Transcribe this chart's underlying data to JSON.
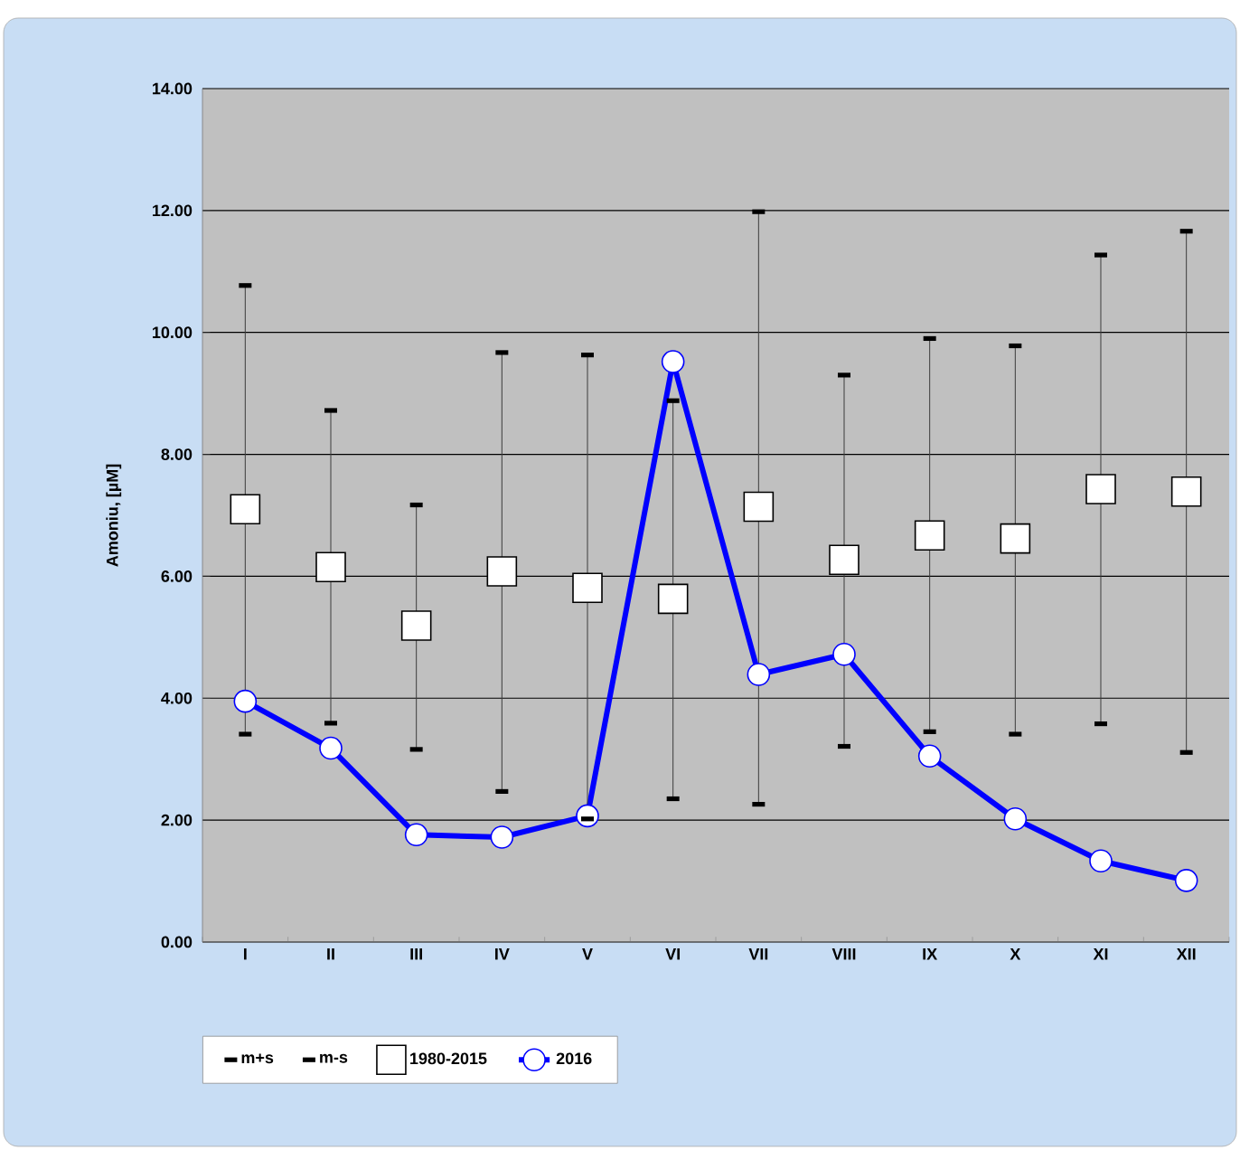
{
  "chart_data": {
    "type": "line",
    "ylabel": "Amoniu, [µM]",
    "categories": [
      "I",
      "II",
      "III",
      "IV",
      "V",
      "VI",
      "VII",
      "VIII",
      "IX",
      "X",
      "XI",
      "XII"
    ],
    "series": [
      {
        "name": "m+s",
        "type": "scatter",
        "color": "#000000",
        "values": [
          10.77,
          8.72,
          7.17,
          9.67,
          9.63,
          8.88,
          11.98,
          9.3,
          9.9,
          9.78,
          11.27,
          11.66
        ]
      },
      {
        "name": "m-s",
        "type": "scatter",
        "color": "#000000",
        "values": [
          3.41,
          3.59,
          3.16,
          2.47,
          2.02,
          2.35,
          2.26,
          3.21,
          3.45,
          3.41,
          3.58,
          3.11
        ]
      },
      {
        "name": "1980-2015",
        "type": "scatter",
        "marker": "square",
        "color": "#ffffff",
        "values": [
          7.1,
          6.15,
          5.19,
          6.08,
          5.81,
          5.63,
          7.14,
          6.27,
          6.67,
          6.62,
          7.43,
          7.39
        ]
      },
      {
        "name": "2016",
        "marker": "circle",
        "color": "#0000ff",
        "values": [
          3.95,
          3.18,
          1.76,
          1.72,
          2.07,
          9.52,
          4.39,
          4.72,
          3.05,
          2.02,
          1.33,
          1.01
        ]
      }
    ],
    "ylim": [
      0,
      14
    ],
    "yticks": [
      {
        "value": 0,
        "label": "0.00"
      },
      {
        "value": 2,
        "label": "2.00"
      },
      {
        "value": 4,
        "label": "4.00"
      },
      {
        "value": 6,
        "label": "6.00"
      },
      {
        "value": 8,
        "label": "8.00"
      },
      {
        "value": 10,
        "label": "10.00"
      },
      {
        "value": 12,
        "label": "12.00"
      },
      {
        "value": 14,
        "label": "14.00"
      }
    ],
    "grid": "y",
    "legend": "bottom"
  }
}
